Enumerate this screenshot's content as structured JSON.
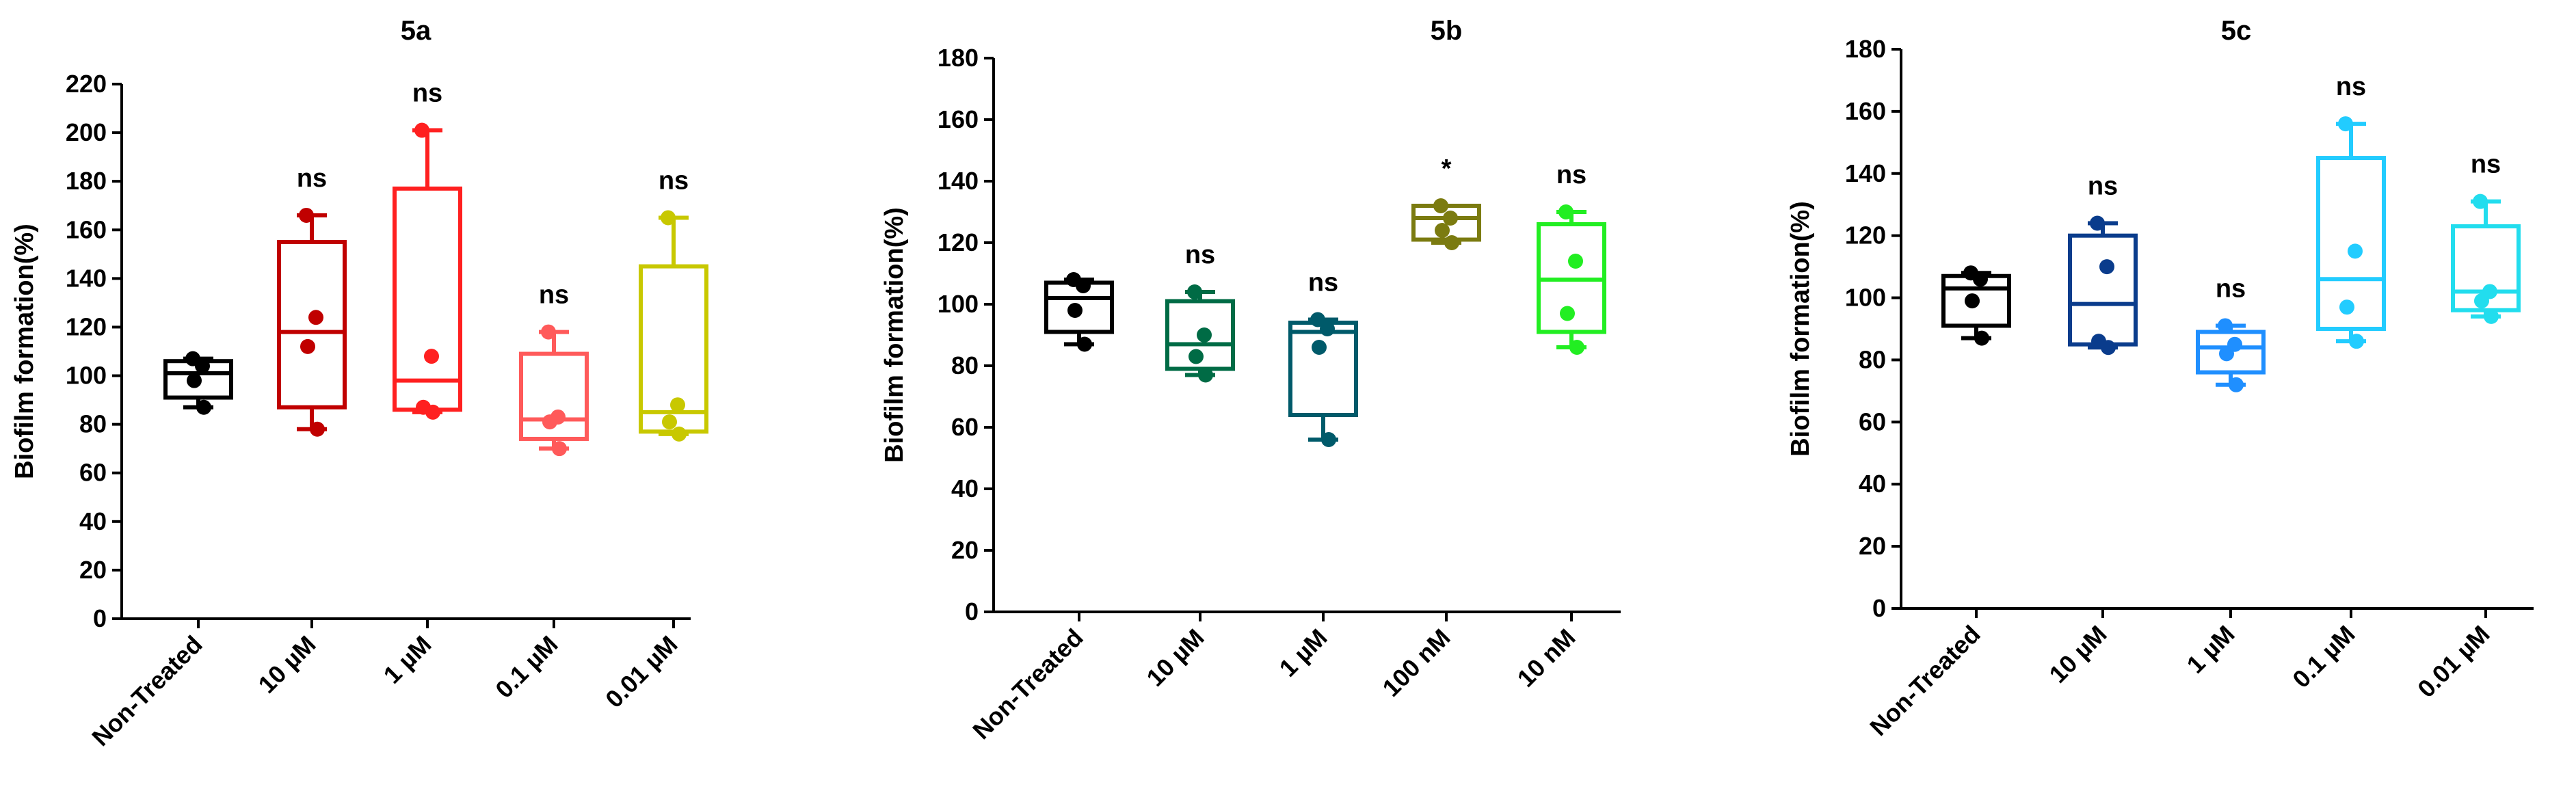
{
  "chart_data": [
    {
      "type": "box",
      "title": "5a",
      "ylabel": "Biofilm formation(%)",
      "ylim": [
        0,
        220
      ],
      "ytick_step": 20,
      "categories": [
        "Non-Treated",
        "10 µM",
        "1 µM",
        "0.1 µM",
        "0.01 µM"
      ],
      "colors": [
        "#000000",
        "#c00000",
        "#ff2020",
        "#ff5a5a",
        "#c8c800"
      ],
      "significance": [
        "",
        "ns",
        "ns",
        "ns",
        "ns"
      ],
      "boxes": [
        {
          "min": 87,
          "q1": 91,
          "median": 101,
          "q3": 106,
          "max": 107,
          "points": [
            107,
            104,
            98,
            87
          ]
        },
        {
          "min": 78,
          "q1": 87,
          "median": 118,
          "q3": 155,
          "max": 166,
          "points": [
            166,
            124,
            112,
            78
          ]
        },
        {
          "min": 85,
          "q1": 86,
          "median": 98,
          "q3": 177,
          "max": 201,
          "points": [
            201,
            108,
            87,
            85
          ]
        },
        {
          "min": 70,
          "q1": 74,
          "median": 82,
          "q3": 109,
          "max": 118,
          "points": [
            118,
            83,
            81,
            70
          ]
        },
        {
          "min": 76,
          "q1": 77,
          "median": 85,
          "q3": 145,
          "max": 165,
          "points": [
            165,
            88,
            81,
            76
          ]
        }
      ]
    },
    {
      "type": "box",
      "title": "5b",
      "ylabel": "Biofilm formation(%)",
      "ylim": [
        0,
        180
      ],
      "ytick_step": 20,
      "categories": [
        "Non-Treated",
        "10 µM",
        "1 µM",
        "100 nM",
        "10 nM"
      ],
      "colors": [
        "#000000",
        "#006b45",
        "#005a6a",
        "#7b7b10",
        "#22ee22"
      ],
      "significance": [
        "",
        "ns",
        "ns",
        "*",
        "ns"
      ],
      "boxes": [
        {
          "min": 87,
          "q1": 91,
          "median": 102,
          "q3": 107,
          "max": 108,
          "points": [
            108,
            106,
            98,
            87
          ]
        },
        {
          "min": 77,
          "q1": 79,
          "median": 87,
          "q3": 101,
          "max": 104,
          "points": [
            104,
            90,
            83,
            77
          ]
        },
        {
          "min": 56,
          "q1": 64,
          "median": 91,
          "q3": 94,
          "max": 95,
          "points": [
            95,
            92,
            86,
            56
          ]
        },
        {
          "min": 120,
          "q1": 121,
          "median": 128,
          "q3": 132,
          "max": 132,
          "points": [
            132,
            128,
            124,
            120
          ]
        },
        {
          "min": 86,
          "q1": 91,
          "median": 108,
          "q3": 126,
          "max": 130,
          "points": [
            130,
            114,
            97,
            86
          ]
        }
      ]
    },
    {
      "type": "box",
      "title": "5c",
      "ylabel": "Biofilm formation(%)",
      "ylim": [
        0,
        180
      ],
      "ytick_step": 20,
      "categories": [
        "Non-Treated",
        "10 µM",
        "1 µM",
        "0.1 µM",
        "0.01 µM"
      ],
      "colors": [
        "#000000",
        "#0a3c8c",
        "#1f8fff",
        "#22ccff",
        "#22ddee"
      ],
      "significance": [
        "",
        "ns",
        "ns",
        "ns",
        "ns"
      ],
      "boxes": [
        {
          "min": 87,
          "q1": 91,
          "median": 103,
          "q3": 107,
          "max": 108,
          "points": [
            108,
            106,
            99,
            87
          ]
        },
        {
          "min": 84,
          "q1": 85,
          "median": 98,
          "q3": 120,
          "max": 124,
          "points": [
            124,
            110,
            86,
            84
          ]
        },
        {
          "min": 72,
          "q1": 76,
          "median": 84,
          "q3": 89,
          "max": 91,
          "points": [
            91,
            85,
            82,
            72
          ]
        },
        {
          "min": 86,
          "q1": 90,
          "median": 106,
          "q3": 145,
          "max": 156,
          "points": [
            156,
            115,
            97,
            86
          ]
        },
        {
          "min": 94,
          "q1": 96,
          "median": 102,
          "q3": 123,
          "max": 131,
          "points": [
            131,
            102,
            99,
            94
          ]
        }
      ]
    }
  ]
}
